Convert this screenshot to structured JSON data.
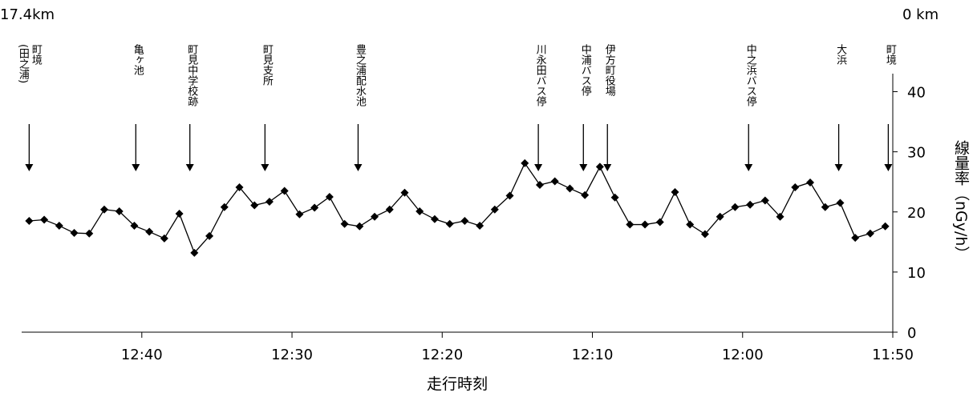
{
  "chart_data": {
    "type": "line",
    "x_label": "走行時刻",
    "y_label": "線量率（nGy/h）",
    "start_label": "17.4km",
    "end_label": "0 km",
    "color": "#000000",
    "xlim": [
      768,
      710
    ],
    "ylim": [
      0,
      43
    ],
    "xticks": [
      {
        "value": 760,
        "label": "12:40"
      },
      {
        "value": 750,
        "label": "12:30"
      },
      {
        "value": 740,
        "label": "12:20"
      },
      {
        "value": 730,
        "label": "12:10"
      },
      {
        "value": 720,
        "label": "12:00"
      },
      {
        "value": 710,
        "label": "11:50"
      }
    ],
    "yticks": [
      0,
      10,
      20,
      30,
      40
    ],
    "x": [
      767.5,
      766.5,
      765.5,
      764.5,
      763.5,
      762.5,
      761.5,
      760.5,
      759.5,
      758.5,
      757.5,
      756.5,
      755.5,
      754.5,
      753.5,
      752.5,
      751.5,
      750.5,
      749.5,
      748.5,
      747.5,
      746.5,
      745.5,
      744.5,
      743.5,
      742.5,
      741.5,
      740.5,
      739.5,
      738.5,
      737.5,
      736.5,
      735.5,
      734.5,
      733.5,
      732.5,
      731.5,
      730.5,
      729.5,
      728.5,
      727.5,
      726.5,
      725.5,
      724.5,
      723.5,
      722.5,
      721.5,
      720.5,
      719.5,
      718.5,
      717.5,
      716.5,
      715.5,
      714.5,
      713.5,
      712.5,
      711.5,
      710.5
    ],
    "values": [
      18.5,
      18.7,
      17.7,
      16.5,
      16.4,
      20.4,
      20.1,
      17.7,
      16.7,
      15.6,
      19.7,
      13.2,
      16,
      20.8,
      24.1,
      21.1,
      21.7,
      23.5,
      19.6,
      20.7,
      22.5,
      18,
      17.6,
      19.2,
      20.4,
      23.2,
      20.1,
      18.8,
      18,
      18.5,
      17.7,
      20.4,
      22.7,
      28.1,
      24.5,
      25.1,
      23.9,
      22.8,
      27.5,
      22.4,
      17.9,
      17.9,
      18.3,
      23.3,
      17.9,
      16.3,
      19.2,
      20.8,
      21.2,
      21.9,
      19.2,
      24.1,
      24.9,
      20.8,
      21.5,
      15.7,
      16.4,
      17.6
    ],
    "annotations": [
      {
        "lines": [
          "町境",
          "(田之浦)"
        ],
        "x": 767.5
      },
      {
        "lines": [
          "亀ヶ池"
        ],
        "x": 760.4
      },
      {
        "lines": [
          "町見中学校跡"
        ],
        "x": 756.8
      },
      {
        "lines": [
          "町見支所"
        ],
        "x": 751.8
      },
      {
        "lines": [
          "豊之浦配水池"
        ],
        "x": 745.6
      },
      {
        "lines": [
          "川永田バス停"
        ],
        "x": 733.6
      },
      {
        "lines": [
          "中浦バス停"
        ],
        "x": 730.6
      },
      {
        "lines": [
          "伊方町役場"
        ],
        "x": 729.0
      },
      {
        "lines": [
          "中之浜バス停"
        ],
        "x": 719.6
      },
      {
        "lines": [
          "大浜"
        ],
        "x": 713.6
      },
      {
        "lines": [
          "町境"
        ],
        "x": 710.3
      }
    ]
  }
}
